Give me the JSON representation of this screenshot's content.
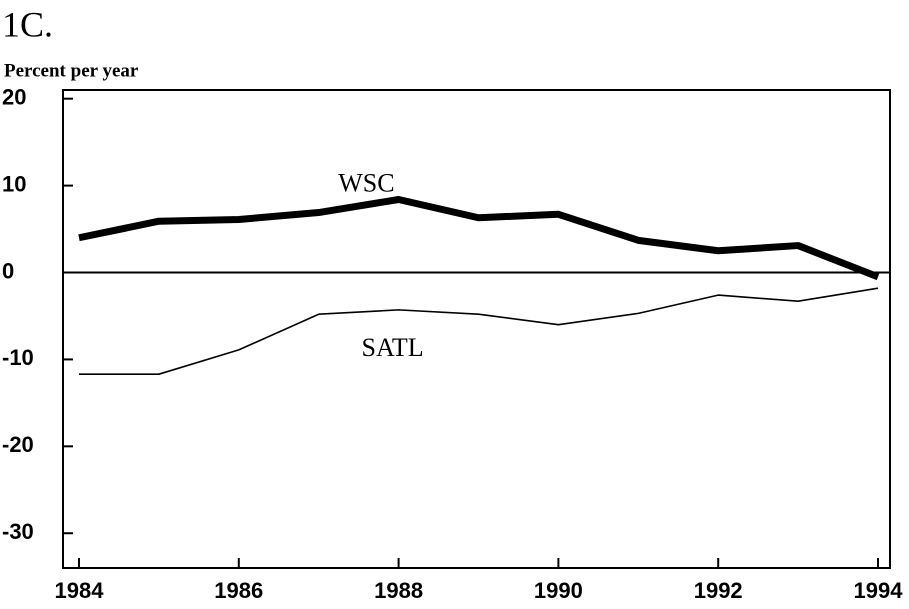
{
  "chart_data": {
    "type": "line",
    "title": "1C.",
    "y_label": "Percent per year",
    "x": [
      1984,
      1985,
      1986,
      1987,
      1988,
      1989,
      1990,
      1991,
      1992,
      1993,
      1994
    ],
    "series": [
      {
        "name": "WSC",
        "color": "#000000",
        "width": 7,
        "values": [
          4.0,
          5.9,
          6.1,
          6.9,
          8.4,
          6.3,
          6.7,
          3.7,
          2.5,
          3.1,
          -0.5
        ]
      },
      {
        "name": "SATL",
        "color": "#000000",
        "width": 1.6,
        "values": [
          -11.7,
          -11.7,
          -8.9,
          -4.8,
          -4.3,
          -4.8,
          -6.0,
          -4.7,
          -2.6,
          -3.3,
          -1.8
        ]
      }
    ],
    "xlim": [
      1983.8,
      1994.15
    ],
    "xticks": [
      1984,
      1986,
      1988,
      1990,
      1992,
      1994
    ],
    "ylim": [
      -34,
      21
    ],
    "yticks": [
      20,
      10,
      0,
      -10,
      -20,
      -30
    ],
    "reference_line": 0,
    "grid": false
  }
}
